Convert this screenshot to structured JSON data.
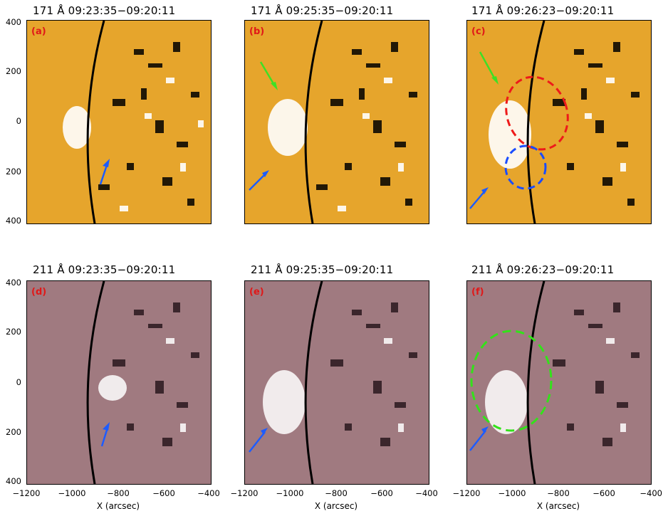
{
  "panels": [
    {
      "title": "171 Å 09:23:35−09:20:11",
      "label": "(a)",
      "channel": "171"
    },
    {
      "title": "171 Å 09:25:35−09:20:11",
      "label": "(b)",
      "channel": "171"
    },
    {
      "title": "171 Å 09:26:23−09:20:11",
      "label": "(c)",
      "channel": "171"
    },
    {
      "title": "211 Å 09:23:35−09:20:11",
      "label": "(d)",
      "channel": "211"
    },
    {
      "title": "211 Å 09:25:35−09:20:11",
      "label": "(e)",
      "channel": "211"
    },
    {
      "title": "211 Å 09:26:23−09:20:11",
      "label": "(f)",
      "channel": "211"
    }
  ],
  "y_ticks": [
    "400",
    "200",
    "0",
    "200",
    "400"
  ],
  "x_ticks": [
    "−1200",
    "−1000",
    "−800",
    "−600",
    "−400"
  ],
  "x_label": "X (arcsec)",
  "colors": {
    "ch171_bg": "#e6a52c",
    "ch211_bg": "#a07a80",
    "arrow_blue": "#1d5cff",
    "arrow_green": "#3ee025",
    "ellipse_red": "#ee1a1a",
    "ellipse_blue": "#1a4dff",
    "ellipse_green": "#33e21a",
    "label_red": "#e01818"
  }
}
